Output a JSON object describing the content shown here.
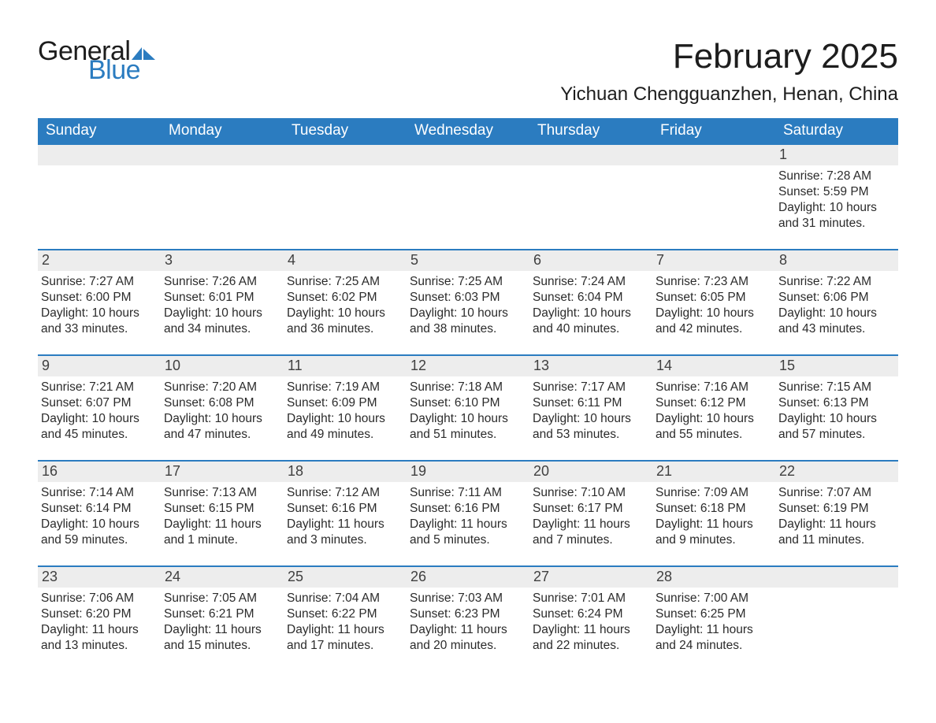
{
  "logo": {
    "text_general": "General",
    "text_blue": "Blue",
    "flag_color": "#2b7cc0"
  },
  "title": "February 2025",
  "location": "Yichuan Chengguanzhen, Henan, China",
  "colors": {
    "header_bg": "#2b7cc0",
    "header_text": "#ffffff",
    "daynum_bg": "#ededed",
    "row_border": "#2b7cc0",
    "body_text": "#2b2b2b"
  },
  "days_of_week": [
    "Sunday",
    "Monday",
    "Tuesday",
    "Wednesday",
    "Thursday",
    "Friday",
    "Saturday"
  ],
  "weeks": [
    [
      null,
      null,
      null,
      null,
      null,
      null,
      {
        "n": "1",
        "sunrise": "Sunrise: 7:28 AM",
        "sunset": "Sunset: 5:59 PM",
        "daylight": "Daylight: 10 hours and 31 minutes."
      }
    ],
    [
      {
        "n": "2",
        "sunrise": "Sunrise: 7:27 AM",
        "sunset": "Sunset: 6:00 PM",
        "daylight": "Daylight: 10 hours and 33 minutes."
      },
      {
        "n": "3",
        "sunrise": "Sunrise: 7:26 AM",
        "sunset": "Sunset: 6:01 PM",
        "daylight": "Daylight: 10 hours and 34 minutes."
      },
      {
        "n": "4",
        "sunrise": "Sunrise: 7:25 AM",
        "sunset": "Sunset: 6:02 PM",
        "daylight": "Daylight: 10 hours and 36 minutes."
      },
      {
        "n": "5",
        "sunrise": "Sunrise: 7:25 AM",
        "sunset": "Sunset: 6:03 PM",
        "daylight": "Daylight: 10 hours and 38 minutes."
      },
      {
        "n": "6",
        "sunrise": "Sunrise: 7:24 AM",
        "sunset": "Sunset: 6:04 PM",
        "daylight": "Daylight: 10 hours and 40 minutes."
      },
      {
        "n": "7",
        "sunrise": "Sunrise: 7:23 AM",
        "sunset": "Sunset: 6:05 PM",
        "daylight": "Daylight: 10 hours and 42 minutes."
      },
      {
        "n": "8",
        "sunrise": "Sunrise: 7:22 AM",
        "sunset": "Sunset: 6:06 PM",
        "daylight": "Daylight: 10 hours and 43 minutes."
      }
    ],
    [
      {
        "n": "9",
        "sunrise": "Sunrise: 7:21 AM",
        "sunset": "Sunset: 6:07 PM",
        "daylight": "Daylight: 10 hours and 45 minutes."
      },
      {
        "n": "10",
        "sunrise": "Sunrise: 7:20 AM",
        "sunset": "Sunset: 6:08 PM",
        "daylight": "Daylight: 10 hours and 47 minutes."
      },
      {
        "n": "11",
        "sunrise": "Sunrise: 7:19 AM",
        "sunset": "Sunset: 6:09 PM",
        "daylight": "Daylight: 10 hours and 49 minutes."
      },
      {
        "n": "12",
        "sunrise": "Sunrise: 7:18 AM",
        "sunset": "Sunset: 6:10 PM",
        "daylight": "Daylight: 10 hours and 51 minutes."
      },
      {
        "n": "13",
        "sunrise": "Sunrise: 7:17 AM",
        "sunset": "Sunset: 6:11 PM",
        "daylight": "Daylight: 10 hours and 53 minutes."
      },
      {
        "n": "14",
        "sunrise": "Sunrise: 7:16 AM",
        "sunset": "Sunset: 6:12 PM",
        "daylight": "Daylight: 10 hours and 55 minutes."
      },
      {
        "n": "15",
        "sunrise": "Sunrise: 7:15 AM",
        "sunset": "Sunset: 6:13 PM",
        "daylight": "Daylight: 10 hours and 57 minutes."
      }
    ],
    [
      {
        "n": "16",
        "sunrise": "Sunrise: 7:14 AM",
        "sunset": "Sunset: 6:14 PM",
        "daylight": "Daylight: 10 hours and 59 minutes."
      },
      {
        "n": "17",
        "sunrise": "Sunrise: 7:13 AM",
        "sunset": "Sunset: 6:15 PM",
        "daylight": "Daylight: 11 hours and 1 minute."
      },
      {
        "n": "18",
        "sunrise": "Sunrise: 7:12 AM",
        "sunset": "Sunset: 6:16 PM",
        "daylight": "Daylight: 11 hours and 3 minutes."
      },
      {
        "n": "19",
        "sunrise": "Sunrise: 7:11 AM",
        "sunset": "Sunset: 6:16 PM",
        "daylight": "Daylight: 11 hours and 5 minutes."
      },
      {
        "n": "20",
        "sunrise": "Sunrise: 7:10 AM",
        "sunset": "Sunset: 6:17 PM",
        "daylight": "Daylight: 11 hours and 7 minutes."
      },
      {
        "n": "21",
        "sunrise": "Sunrise: 7:09 AM",
        "sunset": "Sunset: 6:18 PM",
        "daylight": "Daylight: 11 hours and 9 minutes."
      },
      {
        "n": "22",
        "sunrise": "Sunrise: 7:07 AM",
        "sunset": "Sunset: 6:19 PM",
        "daylight": "Daylight: 11 hours and 11 minutes."
      }
    ],
    [
      {
        "n": "23",
        "sunrise": "Sunrise: 7:06 AM",
        "sunset": "Sunset: 6:20 PM",
        "daylight": "Daylight: 11 hours and 13 minutes."
      },
      {
        "n": "24",
        "sunrise": "Sunrise: 7:05 AM",
        "sunset": "Sunset: 6:21 PM",
        "daylight": "Daylight: 11 hours and 15 minutes."
      },
      {
        "n": "25",
        "sunrise": "Sunrise: 7:04 AM",
        "sunset": "Sunset: 6:22 PM",
        "daylight": "Daylight: 11 hours and 17 minutes."
      },
      {
        "n": "26",
        "sunrise": "Sunrise: 7:03 AM",
        "sunset": "Sunset: 6:23 PM",
        "daylight": "Daylight: 11 hours and 20 minutes."
      },
      {
        "n": "27",
        "sunrise": "Sunrise: 7:01 AM",
        "sunset": "Sunset: 6:24 PM",
        "daylight": "Daylight: 11 hours and 22 minutes."
      },
      {
        "n": "28",
        "sunrise": "Sunrise: 7:00 AM",
        "sunset": "Sunset: 6:25 PM",
        "daylight": "Daylight: 11 hours and 24 minutes."
      },
      null
    ]
  ]
}
